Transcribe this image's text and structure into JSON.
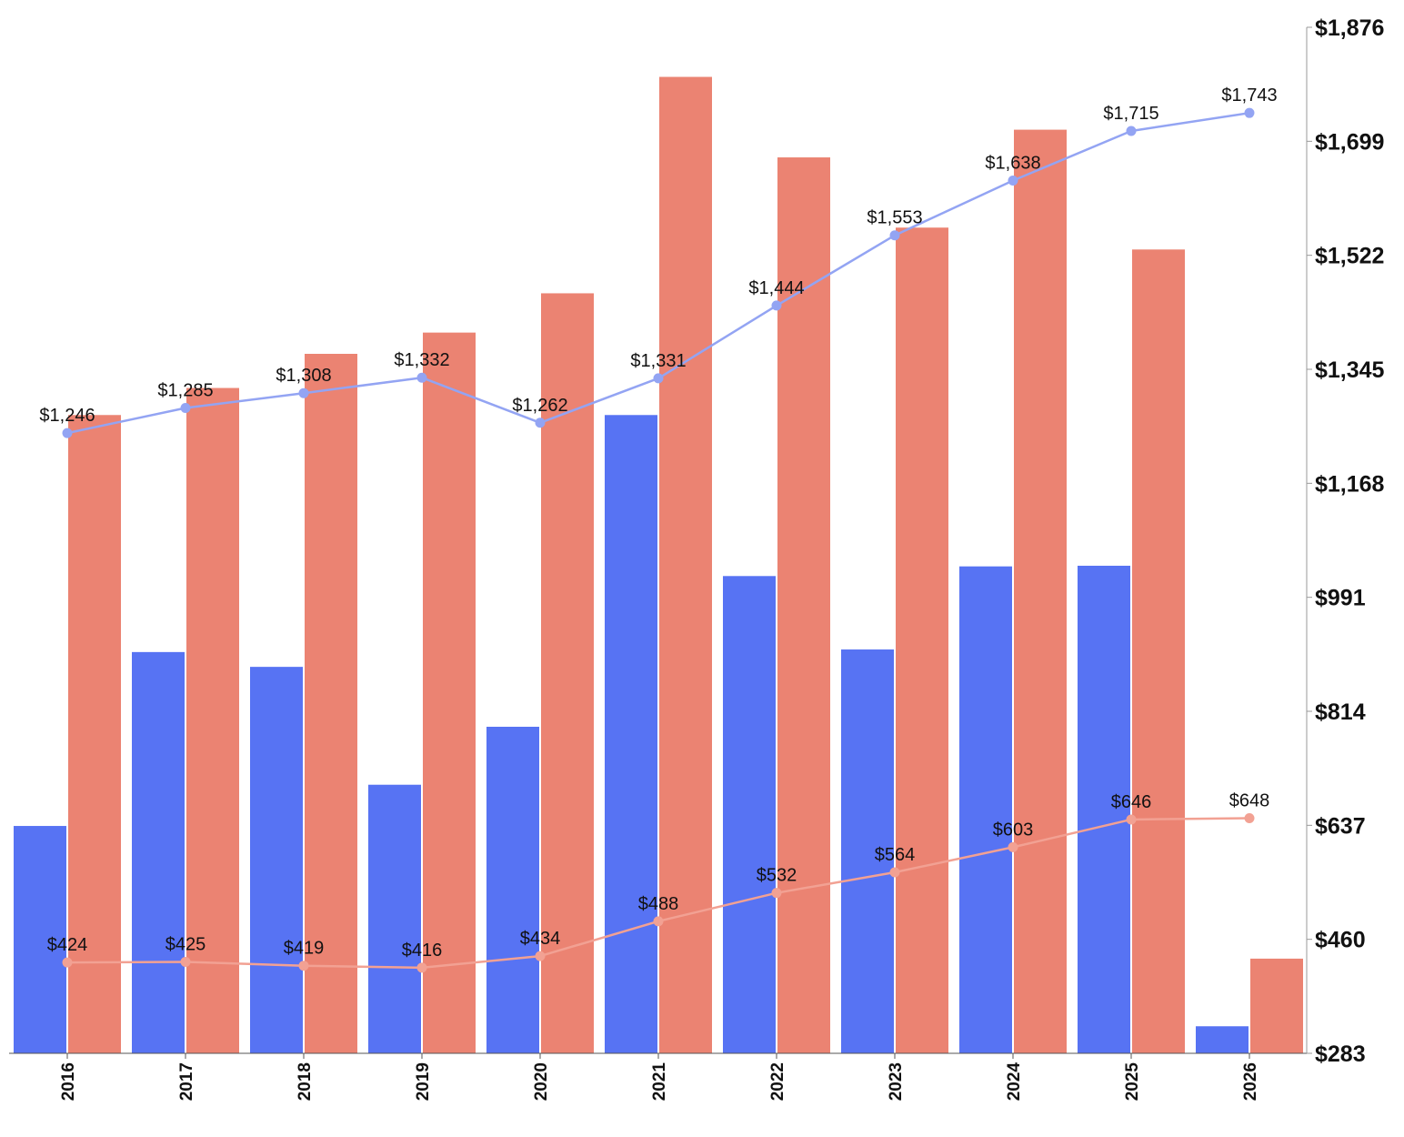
{
  "chart_data": {
    "type": "bar+line",
    "categories": [
      "2016",
      "2017",
      "2018",
      "2019",
      "2020",
      "2021",
      "2022",
      "2023",
      "2024",
      "2025",
      "2026"
    ],
    "bar_series": [
      {
        "name": "Blue bars",
        "color": "#5773f3",
        "values": [
          636,
          906,
          883,
          700,
          790,
          1274,
          1024,
          910,
          1039,
          1040,
          325
        ]
      },
      {
        "name": "Red bars",
        "color": "#eb8372",
        "values": [
          1274,
          1316,
          1369,
          1402,
          1463,
          1799,
          1674,
          1565,
          1717,
          1531,
          430
        ]
      }
    ],
    "line_series": [
      {
        "name": "Blue line",
        "color": "#93a4f3",
        "values": [
          1246,
          1285,
          1308,
          1332,
          1262,
          1331,
          1444,
          1553,
          1638,
          1715,
          1743
        ],
        "labels": [
          "$1,246",
          "$1,285",
          "$1,308",
          "$1,332",
          "$1,262",
          "$1,331",
          "$1,444",
          "$1,553",
          "$1,638",
          "$1,715",
          "$1,743"
        ]
      },
      {
        "name": "Red line",
        "color": "#f2a193",
        "values": [
          424,
          425,
          419,
          416,
          434,
          488,
          532,
          564,
          603,
          646,
          648
        ],
        "labels": [
          "$424",
          "$425",
          "$419",
          "$416",
          "$434",
          "$488",
          "$532",
          "$564",
          "$603",
          "$646",
          "$648"
        ]
      }
    ],
    "y_axis": {
      "position": "right",
      "min": 283,
      "max": 1876,
      "ticks": [
        1876,
        1699,
        1522,
        1345,
        1168,
        991,
        814,
        637,
        460,
        283
      ],
      "tick_labels": [
        "$1,876",
        "$1,699",
        "$1,522",
        "$1,345",
        "$1,168",
        "$991",
        "$814",
        "$637",
        "$460",
        "$283"
      ]
    },
    "title": "",
    "xlabel": "",
    "ylabel": "",
    "grid": false,
    "legend": "none"
  }
}
